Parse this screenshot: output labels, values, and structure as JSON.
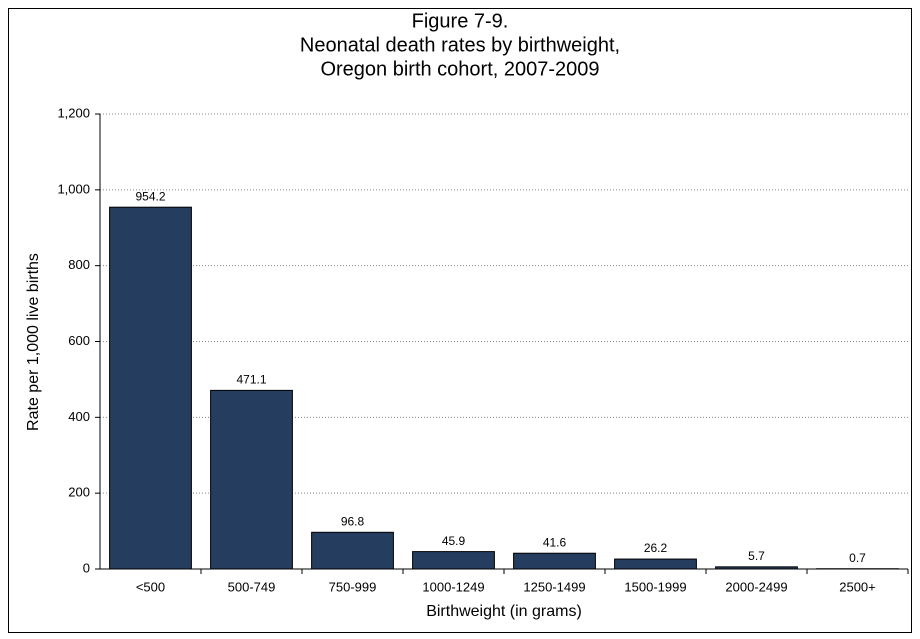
{
  "chart_data": {
    "type": "bar",
    "title": [
      "Figure 7-9.",
      "Neonatal death rates by birthweight,",
      "Oregon birth cohort, 2007-2009"
    ],
    "x_label": "Birthweight (in grams)",
    "y_label": "Rate per 1,000 live births",
    "categories": [
      "<500",
      "500-749",
      "750-999",
      "1000-1249",
      "1250-1499",
      "1500-1999",
      "2000-2499",
      "2500+"
    ],
    "values": [
      954.2,
      471.1,
      96.8,
      45.9,
      41.6,
      26.2,
      5.7,
      0.7
    ],
    "color": "#253d5e",
    "ylim": [
      0,
      1200
    ],
    "yticks": [
      0,
      200,
      400,
      600,
      800,
      {
        "value": 1000,
        "label": "1,000"
      },
      {
        "value": 1200,
        "label": "1,200"
      }
    ],
    "grid": true
  }
}
